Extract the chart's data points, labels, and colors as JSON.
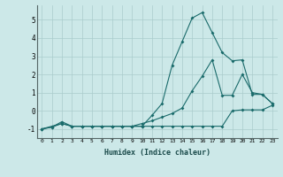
{
  "xlabel": "Humidex (Indice chaleur)",
  "ylabel": "",
  "bg_color": "#cce8e8",
  "grid_color": "#aacccc",
  "line_color": "#1a6b6b",
  "xlim": [
    -0.5,
    23.5
  ],
  "ylim": [
    -1.5,
    5.8
  ],
  "yticks": [
    -1,
    0,
    1,
    2,
    3,
    4,
    5
  ],
  "xticks": [
    0,
    1,
    2,
    3,
    4,
    5,
    6,
    7,
    8,
    9,
    10,
    11,
    12,
    13,
    14,
    15,
    16,
    17,
    18,
    19,
    20,
    21,
    22,
    23
  ],
  "series1_x": [
    0,
    1,
    2,
    3,
    4,
    5,
    6,
    7,
    8,
    9,
    10,
    11,
    12,
    13,
    14,
    15,
    16,
    17,
    18,
    19,
    20,
    21,
    22,
    23
  ],
  "series1_y": [
    -1.0,
    -0.85,
    -0.7,
    -0.85,
    -0.85,
    -0.85,
    -0.85,
    -0.85,
    -0.85,
    -0.85,
    -0.85,
    -0.85,
    -0.85,
    -0.85,
    -0.85,
    -0.85,
    -0.85,
    -0.85,
    -0.85,
    0.0,
    0.05,
    0.05,
    0.05,
    0.3
  ],
  "series2_x": [
    0,
    1,
    2,
    3,
    4,
    5,
    6,
    7,
    8,
    9,
    10,
    11,
    12,
    13,
    14,
    15,
    16,
    17,
    18,
    19,
    20,
    21,
    22,
    23
  ],
  "series2_y": [
    -1.0,
    -0.9,
    -0.6,
    -0.85,
    -0.85,
    -0.85,
    -0.85,
    -0.85,
    -0.85,
    -0.85,
    -0.7,
    -0.55,
    -0.35,
    -0.15,
    0.15,
    1.1,
    1.9,
    2.8,
    0.85,
    0.85,
    2.0,
    1.0,
    0.9,
    0.4
  ],
  "series3_x": [
    0,
    1,
    2,
    3,
    4,
    5,
    6,
    7,
    8,
    9,
    10,
    11,
    12,
    13,
    14,
    15,
    16,
    17,
    18,
    19,
    20,
    21,
    22,
    23
  ],
  "series3_y": [
    -1.0,
    -0.9,
    -0.7,
    -0.85,
    -0.85,
    -0.85,
    -0.85,
    -0.85,
    -0.85,
    -0.85,
    -0.85,
    -0.25,
    0.4,
    2.5,
    3.8,
    5.1,
    5.4,
    4.3,
    3.2,
    2.75,
    2.8,
    0.9,
    0.9,
    0.4
  ]
}
